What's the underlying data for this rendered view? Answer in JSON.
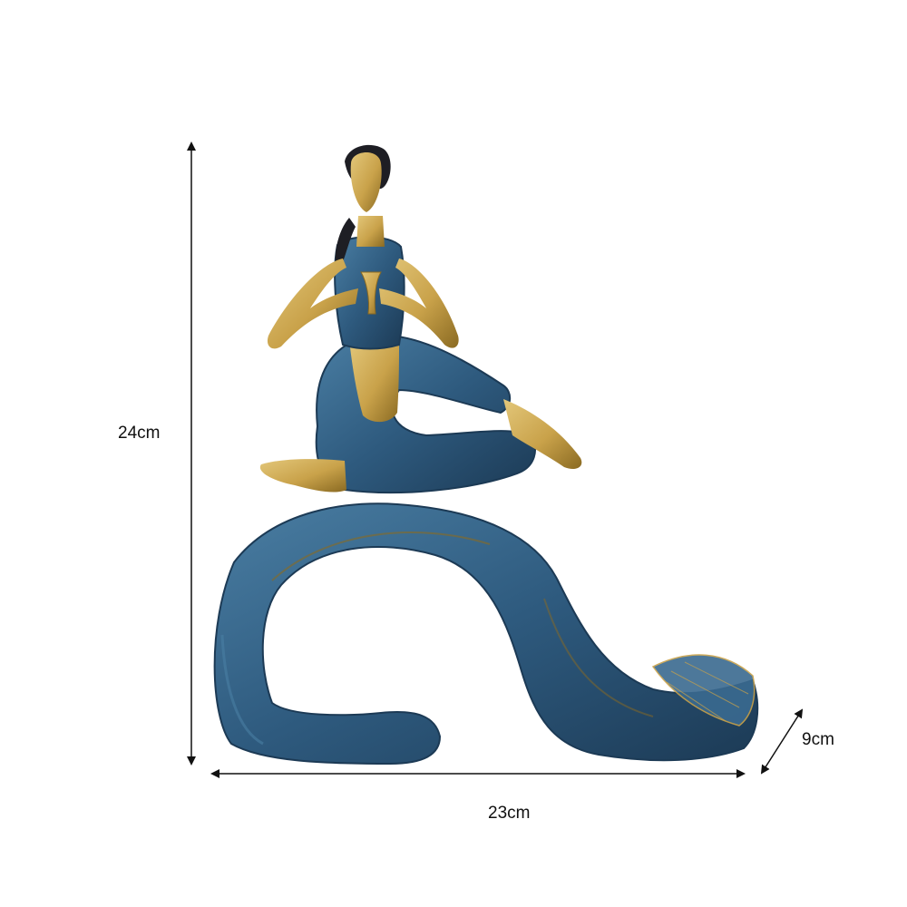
{
  "image": {
    "subject": "yoga-figurine",
    "colors": {
      "background": "#ffffff",
      "gold": "#c9a24a",
      "gold_light": "#e3c77a",
      "gold_dark": "#8a6a22",
      "blue": "#2e5a7e",
      "blue_light": "#4a7ea3",
      "blue_dark": "#1c3a55",
      "hair": "#1e1e24",
      "line": "#111111"
    }
  },
  "dimensions": {
    "height": "24cm",
    "width": "23cm",
    "depth": "9cm"
  }
}
